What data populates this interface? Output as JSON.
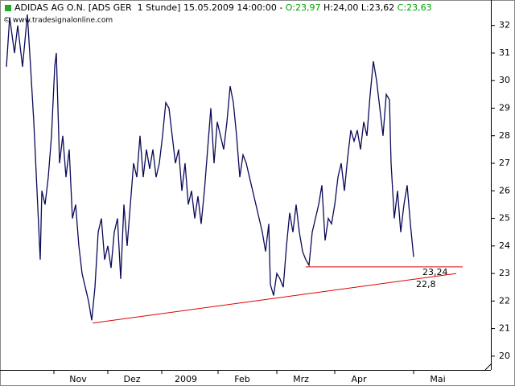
{
  "chart_data": {
    "type": "line",
    "title_parts": [
      {
        "text": "ADIDAS AG O.N. [ADS GER  1 Stunde] 15.05.2009 14:00:00 - ",
        "color": "#000000"
      },
      {
        "text": "O:23,97",
        "color": "#00a000"
      },
      {
        "text": " H:24,00 L:23,62 ",
        "color": "#000000"
      },
      {
        "text": "C:23,63",
        "color": "#00a000"
      }
    ],
    "subtitle": "© www.tradesignalonline.com",
    "xlim": [
      0,
      610
    ],
    "xticks": [
      {
        "value": 97,
        "label": "Nov"
      },
      {
        "value": 164,
        "label": "Dez"
      },
      {
        "value": 231,
        "label": "2009"
      },
      {
        "value": 301,
        "label": "Feb"
      },
      {
        "value": 374,
        "label": "Mrz"
      },
      {
        "value": 446,
        "label": "Apr"
      },
      {
        "value": 544,
        "label": "Mai"
      }
    ],
    "ylim": [
      19.5,
      32.4
    ],
    "yticks": [
      20,
      21,
      22,
      23,
      24,
      25,
      26,
      27,
      28,
      29,
      30,
      31,
      32
    ],
    "series": [
      {
        "name": "ADIDAS AG O.N.",
        "color": "#0a0a5a",
        "x": [
          8,
          12,
          18,
          22,
          28,
          34,
          38,
          42,
          46,
          50,
          52,
          56,
          60,
          64,
          68,
          70,
          74,
          78,
          82,
          86,
          90,
          94,
          98,
          102,
          106,
          110,
          114,
          118,
          122,
          126,
          130,
          134,
          138,
          142,
          146,
          150,
          154,
          158,
          162,
          166,
          170,
          174,
          178,
          182,
          186,
          190,
          194,
          198,
          202,
          206,
          210,
          214,
          218,
          222,
          226,
          230,
          234,
          238,
          242,
          246,
          250,
          254,
          258,
          262,
          266,
          270,
          274,
          278,
          282,
          286,
          290,
          294,
          298,
          302,
          306,
          310,
          314,
          318,
          322,
          326,
          330,
          334,
          336,
          340,
          344,
          348,
          352,
          356,
          360,
          364,
          368,
          372,
          376,
          380,
          384,
          388,
          392,
          396,
          400,
          404,
          408,
          412,
          416,
          420,
          424,
          428,
          432,
          436,
          440,
          444,
          448,
          452,
          456,
          460,
          464,
          468,
          472,
          476,
          480,
          484,
          486,
          490,
          494,
          498,
          502,
          506,
          510,
          514
        ],
        "values": [
          30.5,
          32.3,
          31,
          32,
          30.5,
          32.4,
          30.5,
          28.5,
          26,
          23.5,
          26,
          25.5,
          26.5,
          28,
          30.5,
          31,
          27,
          28,
          26.5,
          27.5,
          25,
          25.5,
          24,
          23,
          22.5,
          22,
          21.3,
          22.5,
          24.5,
          25,
          23.5,
          24,
          23.2,
          24.5,
          25,
          22.8,
          25.5,
          24,
          25.5,
          27,
          26.5,
          28,
          26.5,
          27.5,
          26.8,
          27.5,
          26.5,
          27,
          28,
          29.2,
          29,
          28,
          27,
          27.5,
          26,
          27,
          25.5,
          26,
          25,
          25.8,
          24.8,
          26,
          27.5,
          29,
          27,
          28.5,
          28,
          27.5,
          28.5,
          29.8,
          29.2,
          28,
          26.5,
          27.3,
          27,
          26.5,
          26,
          25.5,
          25,
          24.5,
          23.8,
          24.8,
          22.6,
          22.2,
          23,
          22.8,
          22.5,
          24,
          25.2,
          24.5,
          25.5,
          24.5,
          23.8,
          23.5,
          23.3,
          24.5,
          25,
          25.5,
          26.2,
          24.2,
          25,
          24.8,
          25.5,
          26.5,
          27,
          26,
          27.2,
          28.2,
          27.8,
          28.2,
          27.5,
          28.5,
          28,
          29.5,
          30.7,
          30,
          29,
          28,
          29.5,
          29.3,
          27,
          25,
          26,
          24.5,
          25.5,
          26.2,
          24.8,
          23.6
        ]
      }
    ],
    "annotations": [
      {
        "label": "23,24",
        "color": "#dd0000",
        "x": [
          380,
          575
        ],
        "values": [
          23.24,
          23.24
        ]
      },
      {
        "label": "22,8",
        "color": "#dd0000",
        "x": [
          115,
          567
        ],
        "values": [
          21.2,
          23.0
        ]
      }
    ]
  }
}
